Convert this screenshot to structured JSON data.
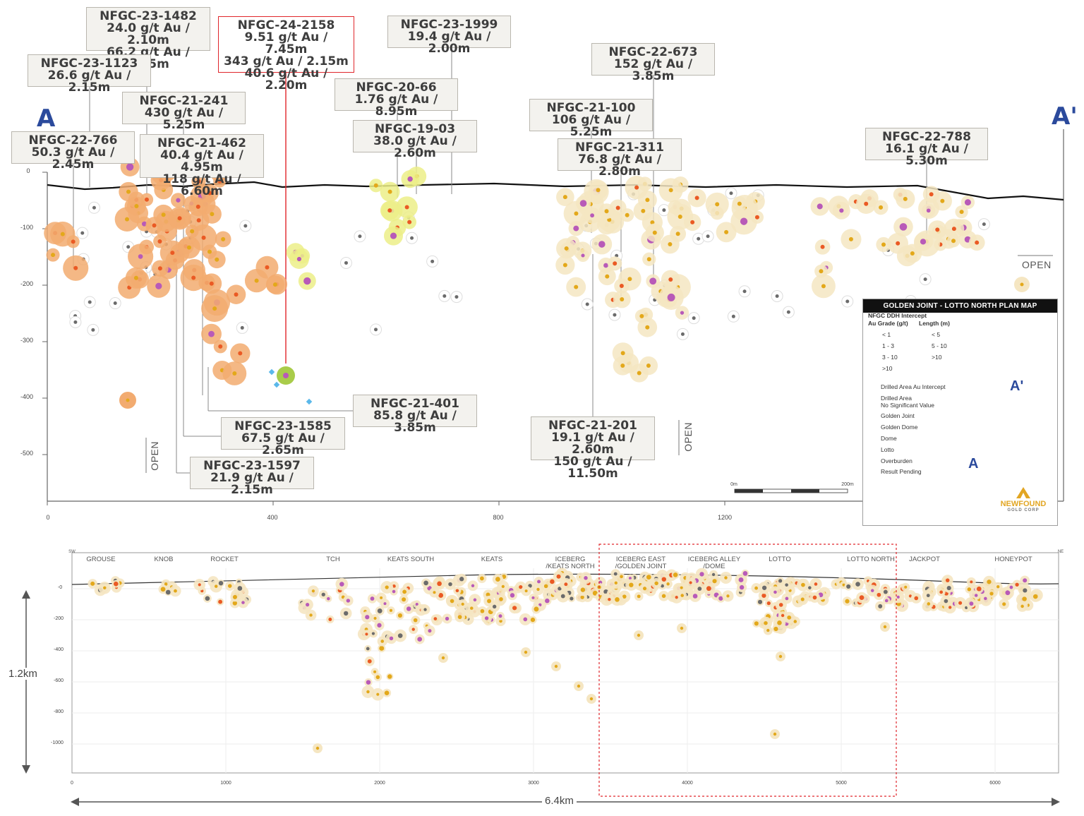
{
  "top_section": {
    "marker_start": "A",
    "marker_end": "A'",
    "y_ticks": [
      "0",
      "-100",
      "-200",
      "-300",
      "-400",
      "-500"
    ],
    "x_ticks": [
      "0",
      "400",
      "800",
      "1200"
    ],
    "open_labels": [
      "OPEN",
      "OPEN",
      "OPEN"
    ],
    "callouts": [
      {
        "id": "NFGC-23-1482",
        "lines": [
          "24.0 g/t Au / 2.10m",
          "66.2 g/t Au / 2.65m"
        ]
      },
      {
        "id": "NFGC-23-1123",
        "lines": [
          "26.6 g/t Au / 2.15m"
        ]
      },
      {
        "id": "NFGC-24-2158",
        "lines": [
          "9.51 g/t Au / 7.45m",
          "343 g/t Au / 2.15m",
          "40.6 g/t Au / 2.20m"
        ]
      },
      {
        "id": "NFGC-23-1999",
        "lines": [
          "19.4 g/t Au / 2.00m"
        ]
      },
      {
        "id": "NFGC-22-673",
        "lines": [
          "152 g/t Au / 3.85m"
        ]
      },
      {
        "id": "NFGC-20-66",
        "lines": [
          "1.76 g/t Au / 8.95m"
        ]
      },
      {
        "id": "NFGC-21-241",
        "lines": [
          "430 g/t Au / 5.25m"
        ]
      },
      {
        "id": "NFGC-21-100",
        "lines": [
          "106 g/t Au / 5.25m"
        ]
      },
      {
        "id": "NFGC-19-03",
        "lines": [
          "38.0 g/t Au / 2.60m"
        ]
      },
      {
        "id": "NFGC-22-766",
        "lines": [
          "50.3 g/t Au / 2.45m"
        ]
      },
      {
        "id": "NFGC-21-462",
        "lines": [
          "40.4 g/t Au / 4.95m",
          "118 g/t Au / 6.60m"
        ]
      },
      {
        "id": "NFGC-21-311",
        "lines": [
          "76.8 g/t Au / 2.80m"
        ]
      },
      {
        "id": "NFGC-22-788",
        "lines": [
          "16.1 g/t Au / 5.30m"
        ]
      },
      {
        "id": "NFGC-21-401",
        "lines": [
          "85.8 g/t Au / 3.85m"
        ]
      },
      {
        "id": "NFGC-23-1585",
        "lines": [
          "67.5 g/t Au / 2.65m"
        ]
      },
      {
        "id": "NFGC-21-201",
        "lines": [
          "19.1 g/t Au / 2.60m",
          "150 g/t Au / 11.50m"
        ]
      },
      {
        "id": "NFGC-23-1597",
        "lines": [
          "21.9 g/t Au / 2.15m"
        ]
      }
    ],
    "scale_bar": {
      "left": "0m",
      "right": "200m"
    }
  },
  "legend": {
    "title": "GOLDEN JOINT - LOTTO NORTH PLAN MAP",
    "intercept_heading": "NFGC DDH Intercept",
    "grade_heading": "Au Grade (g/t)",
    "length_heading": "Length (m)",
    "grades": [
      "< 1",
      "1 - 3",
      "3 - 10",
      ">10"
    ],
    "lengths": [
      "< 5",
      "5 - 10",
      ">10"
    ],
    "categories": [
      "Drilled Area Au Intercept",
      "Drilled Area",
      "No Significant Value",
      "Golden Joint",
      "Golden Dome",
      "Dome",
      "Lotto",
      "Overburden",
      "Result Pending"
    ],
    "map_labels": [
      "A'",
      "A"
    ],
    "logo_name": "NEWFOUND",
    "logo_sub": "GOLD CORP",
    "colors": {
      "lt1": "#6b6b6b",
      "g1_3": "#e3a81a",
      "g3_10": "#ea5a24",
      "gt10": "#b85ab8",
      "dai": "#f5e6c2",
      "golden_joint": "#f2ab70",
      "golden_dome": "#a9cc4a",
      "dome": "#ecef88",
      "lotto": "#f5e6c2",
      "overburden": "#111111",
      "pending": "#5bb8ea"
    }
  },
  "bottom_section": {
    "corner_left": "SW",
    "corner_right": "NE",
    "zones": [
      "GROUSE",
      "KNOB",
      "ROCKET",
      "TCH",
      "KEATS SOUTH",
      "KEATS",
      "ICEBERG",
      "/KEATS NORTH",
      "ICEBERG EAST",
      "/GOLDEN JOINT",
      "ICEBERG ALLEY",
      "/DOME",
      "LOTTO",
      "LOTTO NORTH",
      "JACKPOT",
      "HONEYPOT"
    ],
    "y_ticks": [
      "-0",
      "-200",
      "-400",
      "-600",
      "-800",
      "-1000"
    ],
    "x_ticks": [
      "0",
      "1000",
      "2000",
      "3000",
      "4000",
      "5000",
      "6000"
    ],
    "height_label": "1.2km",
    "width_label": "6.4km"
  }
}
